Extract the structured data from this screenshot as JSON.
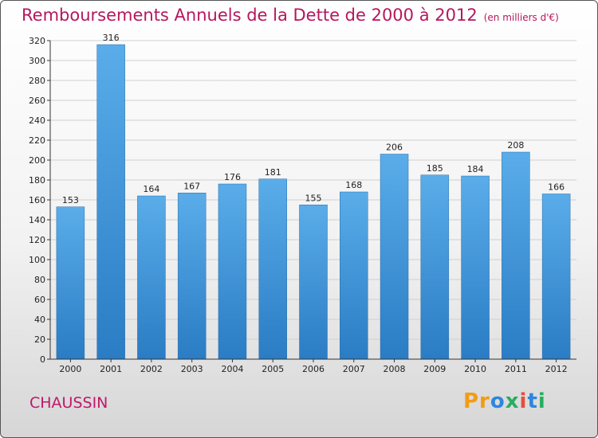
{
  "chart_data": {
    "type": "bar",
    "title": "Remboursements Annuels de la Dette de 2000 à 2012",
    "subtitle": "(en milliers d'€)",
    "categories": [
      "2000",
      "2001",
      "2002",
      "2003",
      "2004",
      "2005",
      "2006",
      "2007",
      "2008",
      "2009",
      "2010",
      "2011",
      "2012"
    ],
    "values": [
      153,
      316,
      164,
      167,
      176,
      181,
      155,
      168,
      206,
      185,
      184,
      208,
      166
    ],
    "ylim": [
      0,
      320
    ],
    "yticks": [
      0,
      20,
      40,
      60,
      80,
      100,
      120,
      140,
      160,
      180,
      200,
      220,
      240,
      260,
      280,
      300,
      320
    ],
    "xlabel": "",
    "ylabel": "",
    "grid": true,
    "bar_color": "#3a8fd6"
  },
  "footer": {
    "commune": "CHAUSSIN",
    "logo": "Proxiti"
  }
}
